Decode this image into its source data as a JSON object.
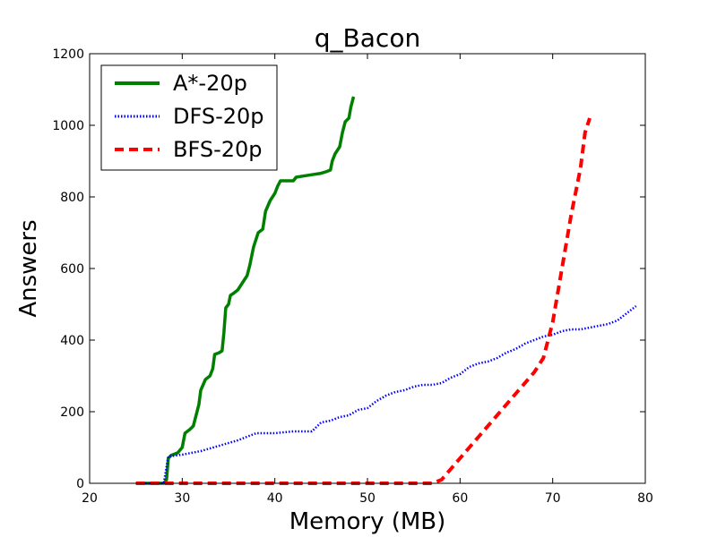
{
  "chart_data": {
    "type": "line",
    "title": "q_Bacon",
    "xlabel": "Memory (MB)",
    "ylabel": "Answers",
    "xlim": [
      20,
      80
    ],
    "ylim": [
      0,
      1200
    ],
    "xticks": [
      "20",
      "30",
      "40",
      "50",
      "60",
      "70",
      "80"
    ],
    "yticks": [
      "0",
      "200",
      "400",
      "600",
      "800",
      "1000",
      "1200"
    ],
    "grid": false,
    "legend_position": "top-left",
    "series": [
      {
        "name": "A*-20p",
        "color": "#008000",
        "style": "solid",
        "points": [
          [
            25,
            0
          ],
          [
            28,
            0
          ],
          [
            28.3,
            10
          ],
          [
            28.5,
            70
          ],
          [
            28.8,
            78
          ],
          [
            29.5,
            85
          ],
          [
            30,
            100
          ],
          [
            30.3,
            140
          ],
          [
            30.8,
            150
          ],
          [
            31.2,
            160
          ],
          [
            31.5,
            190
          ],
          [
            31.8,
            220
          ],
          [
            32,
            260
          ],
          [
            32.5,
            290
          ],
          [
            33,
            300
          ],
          [
            33.3,
            320
          ],
          [
            33.5,
            360
          ],
          [
            34,
            365
          ],
          [
            34.3,
            370
          ],
          [
            34.5,
            420
          ],
          [
            34.7,
            490
          ],
          [
            35,
            500
          ],
          [
            35.2,
            525
          ],
          [
            35.5,
            530
          ],
          [
            36,
            540
          ],
          [
            36.5,
            560
          ],
          [
            37,
            580
          ],
          [
            37.3,
            610
          ],
          [
            37.7,
            660
          ],
          [
            38.2,
            700
          ],
          [
            38.7,
            710
          ],
          [
            39,
            760
          ],
          [
            39.5,
            790
          ],
          [
            40,
            810
          ],
          [
            40.3,
            830
          ],
          [
            40.6,
            845
          ],
          [
            41,
            845
          ],
          [
            41.5,
            845
          ],
          [
            42,
            845
          ],
          [
            42.3,
            855
          ],
          [
            43,
            858
          ],
          [
            44,
            862
          ],
          [
            45,
            866
          ],
          [
            45.5,
            870
          ],
          [
            46,
            875
          ],
          [
            46.2,
            900
          ],
          [
            46.5,
            920
          ],
          [
            47,
            940
          ],
          [
            47.3,
            980
          ],
          [
            47.6,
            1010
          ],
          [
            48,
            1020
          ],
          [
            48.2,
            1050
          ],
          [
            48.5,
            1080
          ]
        ]
      },
      {
        "name": "DFS-20p",
        "color": "#0000ff",
        "style": "dotted",
        "points": [
          [
            25,
            0
          ],
          [
            28,
            0
          ],
          [
            28.5,
            75
          ],
          [
            30,
            80
          ],
          [
            32,
            90
          ],
          [
            34,
            105
          ],
          [
            36,
            120
          ],
          [
            38,
            140
          ],
          [
            40,
            140
          ],
          [
            42,
            145
          ],
          [
            44,
            145
          ],
          [
            45,
            170
          ],
          [
            46,
            175
          ],
          [
            47,
            185
          ],
          [
            48,
            190
          ],
          [
            49,
            205
          ],
          [
            50,
            210
          ],
          [
            51,
            230
          ],
          [
            52,
            245
          ],
          [
            53,
            255
          ],
          [
            54,
            260
          ],
          [
            55,
            270
          ],
          [
            56,
            275
          ],
          [
            57,
            275
          ],
          [
            58,
            280
          ],
          [
            59,
            295
          ],
          [
            60,
            305
          ],
          [
            61,
            325
          ],
          [
            62,
            335
          ],
          [
            63,
            340
          ],
          [
            64,
            350
          ],
          [
            65,
            365
          ],
          [
            66,
            375
          ],
          [
            67,
            390
          ],
          [
            68,
            400
          ],
          [
            69,
            410
          ],
          [
            70,
            415
          ],
          [
            71,
            425
          ],
          [
            72,
            430
          ],
          [
            73,
            430
          ],
          [
            74,
            435
          ],
          [
            75,
            440
          ],
          [
            76,
            445
          ],
          [
            77,
            455
          ],
          [
            78,
            475
          ],
          [
            79,
            495
          ]
        ]
      },
      {
        "name": "BFS-20p",
        "color": "#ff0000",
        "style": "dashed",
        "points": [
          [
            25,
            0
          ],
          [
            57,
            0
          ],
          [
            58,
            10
          ],
          [
            60,
            70
          ],
          [
            62,
            130
          ],
          [
            64,
            190
          ],
          [
            66,
            250
          ],
          [
            68,
            310
          ],
          [
            69,
            350
          ],
          [
            70,
            450
          ],
          [
            71,
            600
          ],
          [
            72,
            750
          ],
          [
            73,
            880
          ],
          [
            73.5,
            980
          ],
          [
            74,
            1020
          ]
        ]
      }
    ]
  }
}
